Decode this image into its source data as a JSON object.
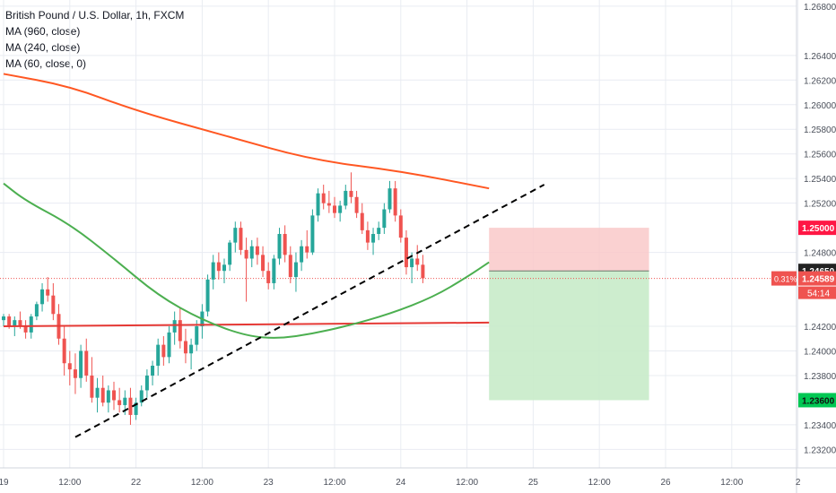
{
  "legend": {
    "title": "British Pound / U.S. Dollar, 1h, FXCM",
    "ma1": "MA (960, close)",
    "ma2": "MA (240, close)",
    "ma3": "MA (60, close, 0)"
  },
  "colors": {
    "up": "#26a69a",
    "down": "#ef5350",
    "ma960": "#e53935",
    "ma240": "#ff5722",
    "ma60": "#4caf50",
    "stop_zone": "#f9c9c9",
    "target_zone": "#c8ebc9",
    "grid": "#e9ecf2",
    "axis_text": "#4a4f5a"
  },
  "price_axis": {
    "ticks": [
      "1.26800",
      "1.26400",
      "1.26200",
      "1.26000",
      "1.25800",
      "1.25600",
      "1.25400",
      "1.25200",
      "1.24800",
      "1.24200",
      "1.24000",
      "1.23800",
      "1.23400",
      "1.23200"
    ],
    "tick_values": [
      1.268,
      1.264,
      1.262,
      1.26,
      1.258,
      1.256,
      1.254,
      1.252,
      1.248,
      1.242,
      1.24,
      1.238,
      1.234,
      1.232
    ],
    "ylim": [
      1.2305,
      1.2685
    ]
  },
  "time_axis": {
    "labels": [
      "19",
      "12:00",
      "22",
      "12:00",
      "23",
      "12:00",
      "24",
      "12:00",
      "25",
      "12:00",
      "26",
      "12:00",
      "2"
    ],
    "positions": [
      0,
      12,
      24,
      36,
      48,
      60,
      72,
      84,
      96,
      108,
      120,
      132,
      144
    ]
  },
  "price_labels": {
    "stop": {
      "text": "1.25000",
      "value": 1.25
    },
    "entry": {
      "text": "1.24650",
      "value": 1.2465
    },
    "current": {
      "text": "1.24589",
      "value": 1.24589
    },
    "percent": "0.31%",
    "countdown": "54:14",
    "target": {
      "text": "1.23600",
      "value": 1.236
    }
  },
  "chart_data": {
    "type": "candlestick",
    "title": "British Pound / U.S. Dollar, 1h, FXCM",
    "x_unit": "hourly bars (2 bars per plotted candle)",
    "series": [
      {
        "name": "MA (960, close)",
        "points": [
          [
            0,
            1.242
          ],
          [
            88,
            1.2423
          ]
        ]
      },
      {
        "name": "MA (240, close)",
        "points": [
          [
            0,
            1.2625
          ],
          [
            12,
            1.2615
          ],
          [
            24,
            1.2595
          ],
          [
            40,
            1.2575
          ],
          [
            56,
            1.2555
          ],
          [
            72,
            1.2546
          ],
          [
            88,
            1.2532
          ]
        ]
      },
      {
        "name": "MA (60, close, 0)",
        "points": [
          [
            0,
            1.2536
          ],
          [
            4,
            1.2522
          ],
          [
            12,
            1.2503
          ],
          [
            20,
            1.2475
          ],
          [
            28,
            1.2445
          ],
          [
            36,
            1.2425
          ],
          [
            44,
            1.2412
          ],
          [
            50,
            1.241
          ],
          [
            56,
            1.2414
          ],
          [
            62,
            1.242
          ],
          [
            70,
            1.243
          ],
          [
            78,
            1.2444
          ],
          [
            84,
            1.246
          ],
          [
            88,
            1.2472
          ]
        ]
      }
    ],
    "candles": [
      [
        1.2425,
        1.243,
        1.242,
        1.2428
      ],
      [
        1.2428,
        1.243,
        1.2418,
        1.242
      ],
      [
        1.242,
        1.2428,
        1.2412,
        1.2425
      ],
      [
        1.2425,
        1.2432,
        1.2418,
        1.242
      ],
      [
        1.242,
        1.2425,
        1.241,
        1.2415
      ],
      [
        1.2415,
        1.243,
        1.241,
        1.2428
      ],
      [
        1.2428,
        1.244,
        1.2425,
        1.2438
      ],
      [
        1.2438,
        1.2455,
        1.2432,
        1.245
      ],
      [
        1.245,
        1.246,
        1.244,
        1.2445
      ],
      [
        1.2445,
        1.2455,
        1.2425,
        1.243
      ],
      [
        1.243,
        1.2438,
        1.2405,
        1.241
      ],
      [
        1.241,
        1.242,
        1.238,
        1.239
      ],
      [
        1.239,
        1.24,
        1.2372,
        1.2385
      ],
      [
        1.2385,
        1.2398,
        1.2365,
        1.2378
      ],
      [
        1.2378,
        1.2405,
        1.237,
        1.24
      ],
      [
        1.24,
        1.241,
        1.2375,
        1.238
      ],
      [
        1.238,
        1.2395,
        1.2358,
        1.2362
      ],
      [
        1.2362,
        1.2378,
        1.235,
        1.237
      ],
      [
        1.237,
        1.238,
        1.2355,
        1.2358
      ],
      [
        1.2358,
        1.2372,
        1.235,
        1.2368
      ],
      [
        1.2368,
        1.2375,
        1.2352,
        1.236
      ],
      [
        1.236,
        1.237,
        1.235,
        1.2356
      ],
      [
        1.2356,
        1.2368,
        1.2348,
        1.2362
      ],
      [
        1.2362,
        1.237,
        1.234,
        1.2348
      ],
      [
        1.2348,
        1.2362,
        1.2344,
        1.2358
      ],
      [
        1.2358,
        1.2372,
        1.2355,
        1.2368
      ],
      [
        1.2368,
        1.2385,
        1.2362,
        1.238
      ],
      [
        1.238,
        1.2392,
        1.2372,
        1.2388
      ],
      [
        1.2388,
        1.241,
        1.238,
        1.2405
      ],
      [
        1.2405,
        1.2412,
        1.2388,
        1.2395
      ],
      [
        1.2395,
        1.242,
        1.239,
        1.2415
      ],
      [
        1.2415,
        1.2432,
        1.2405,
        1.2425
      ],
      [
        1.2425,
        1.2435,
        1.2402,
        1.2408
      ],
      [
        1.2408,
        1.2418,
        1.239,
        1.2398
      ],
      [
        1.2398,
        1.241,
        1.2385,
        1.2405
      ],
      [
        1.2405,
        1.2425,
        1.24,
        1.242
      ],
      [
        1.242,
        1.2438,
        1.241,
        1.2432
      ],
      [
        1.2432,
        1.2462,
        1.2428,
        1.2458
      ],
      [
        1.2458,
        1.2478,
        1.245,
        1.2472
      ],
      [
        1.2472,
        1.248,
        1.2458,
        1.2465
      ],
      [
        1.2465,
        1.2475,
        1.2455,
        1.247
      ],
      [
        1.247,
        1.249,
        1.2465,
        1.2488
      ],
      [
        1.2488,
        1.2505,
        1.248,
        1.25
      ],
      [
        1.25,
        1.2505,
        1.2478,
        1.2482
      ],
      [
        1.2482,
        1.2492,
        1.244,
        1.2475
      ],
      [
        1.2475,
        1.249,
        1.2468,
        1.2485
      ],
      [
        1.2485,
        1.2492,
        1.247,
        1.2478
      ],
      [
        1.2478,
        1.2485,
        1.246,
        1.2465
      ],
      [
        1.2465,
        1.2472,
        1.245,
        1.2455
      ],
      [
        1.2455,
        1.2478,
        1.245,
        1.2475
      ],
      [
        1.2475,
        1.25,
        1.247,
        1.2495
      ],
      [
        1.2495,
        1.2502,
        1.2472,
        1.2478
      ],
      [
        1.2478,
        1.2485,
        1.2455,
        1.246
      ],
      [
        1.246,
        1.248,
        1.2448,
        1.2472
      ],
      [
        1.2472,
        1.249,
        1.2465,
        1.2485
      ],
      [
        1.2485,
        1.2498,
        1.2475,
        1.248
      ],
      [
        1.248,
        1.2515,
        1.2478,
        1.251
      ],
      [
        1.251,
        1.2532,
        1.2505,
        1.2528
      ],
      [
        1.2528,
        1.2535,
        1.2515,
        1.252
      ],
      [
        1.252,
        1.253,
        1.2512,
        1.2518
      ],
      [
        1.2518,
        1.2525,
        1.2508,
        1.2512
      ],
      [
        1.2512,
        1.2522,
        1.2505,
        1.2518
      ],
      [
        1.2518,
        1.2535,
        1.2515,
        1.253
      ],
      [
        1.253,
        1.2545,
        1.252,
        1.2525
      ],
      [
        1.2525,
        1.253,
        1.2508,
        1.2512
      ],
      [
        1.2512,
        1.252,
        1.2495,
        1.2498
      ],
      [
        1.2498,
        1.2505,
        1.2482,
        1.2488
      ],
      [
        1.2488,
        1.25,
        1.2478,
        1.2495
      ],
      [
        1.2495,
        1.2505,
        1.249,
        1.25
      ],
      [
        1.25,
        1.252,
        1.2495,
        1.2515
      ],
      [
        1.2515,
        1.2538,
        1.2512,
        1.2532
      ],
      [
        1.2532,
        1.2538,
        1.2505,
        1.251
      ],
      [
        1.251,
        1.2515,
        1.2488,
        1.2492
      ],
      [
        1.2492,
        1.2498,
        1.2462,
        1.2468
      ],
      [
        1.2468,
        1.248,
        1.2455,
        1.2475
      ],
      [
        1.2475,
        1.2486,
        1.2465,
        1.247
      ],
      [
        1.247,
        1.2478,
        1.2455,
        1.2459
      ]
    ],
    "trendline": {
      "points": [
        [
          13,
          1.233
        ],
        [
          98,
          1.2535
        ]
      ],
      "style": "dashed"
    },
    "position": {
      "type": "short",
      "entry": 1.2465,
      "stop": 1.25,
      "target": 1.236,
      "x_range": [
        88,
        117
      ]
    },
    "xlabel": "",
    "ylabel": ""
  }
}
